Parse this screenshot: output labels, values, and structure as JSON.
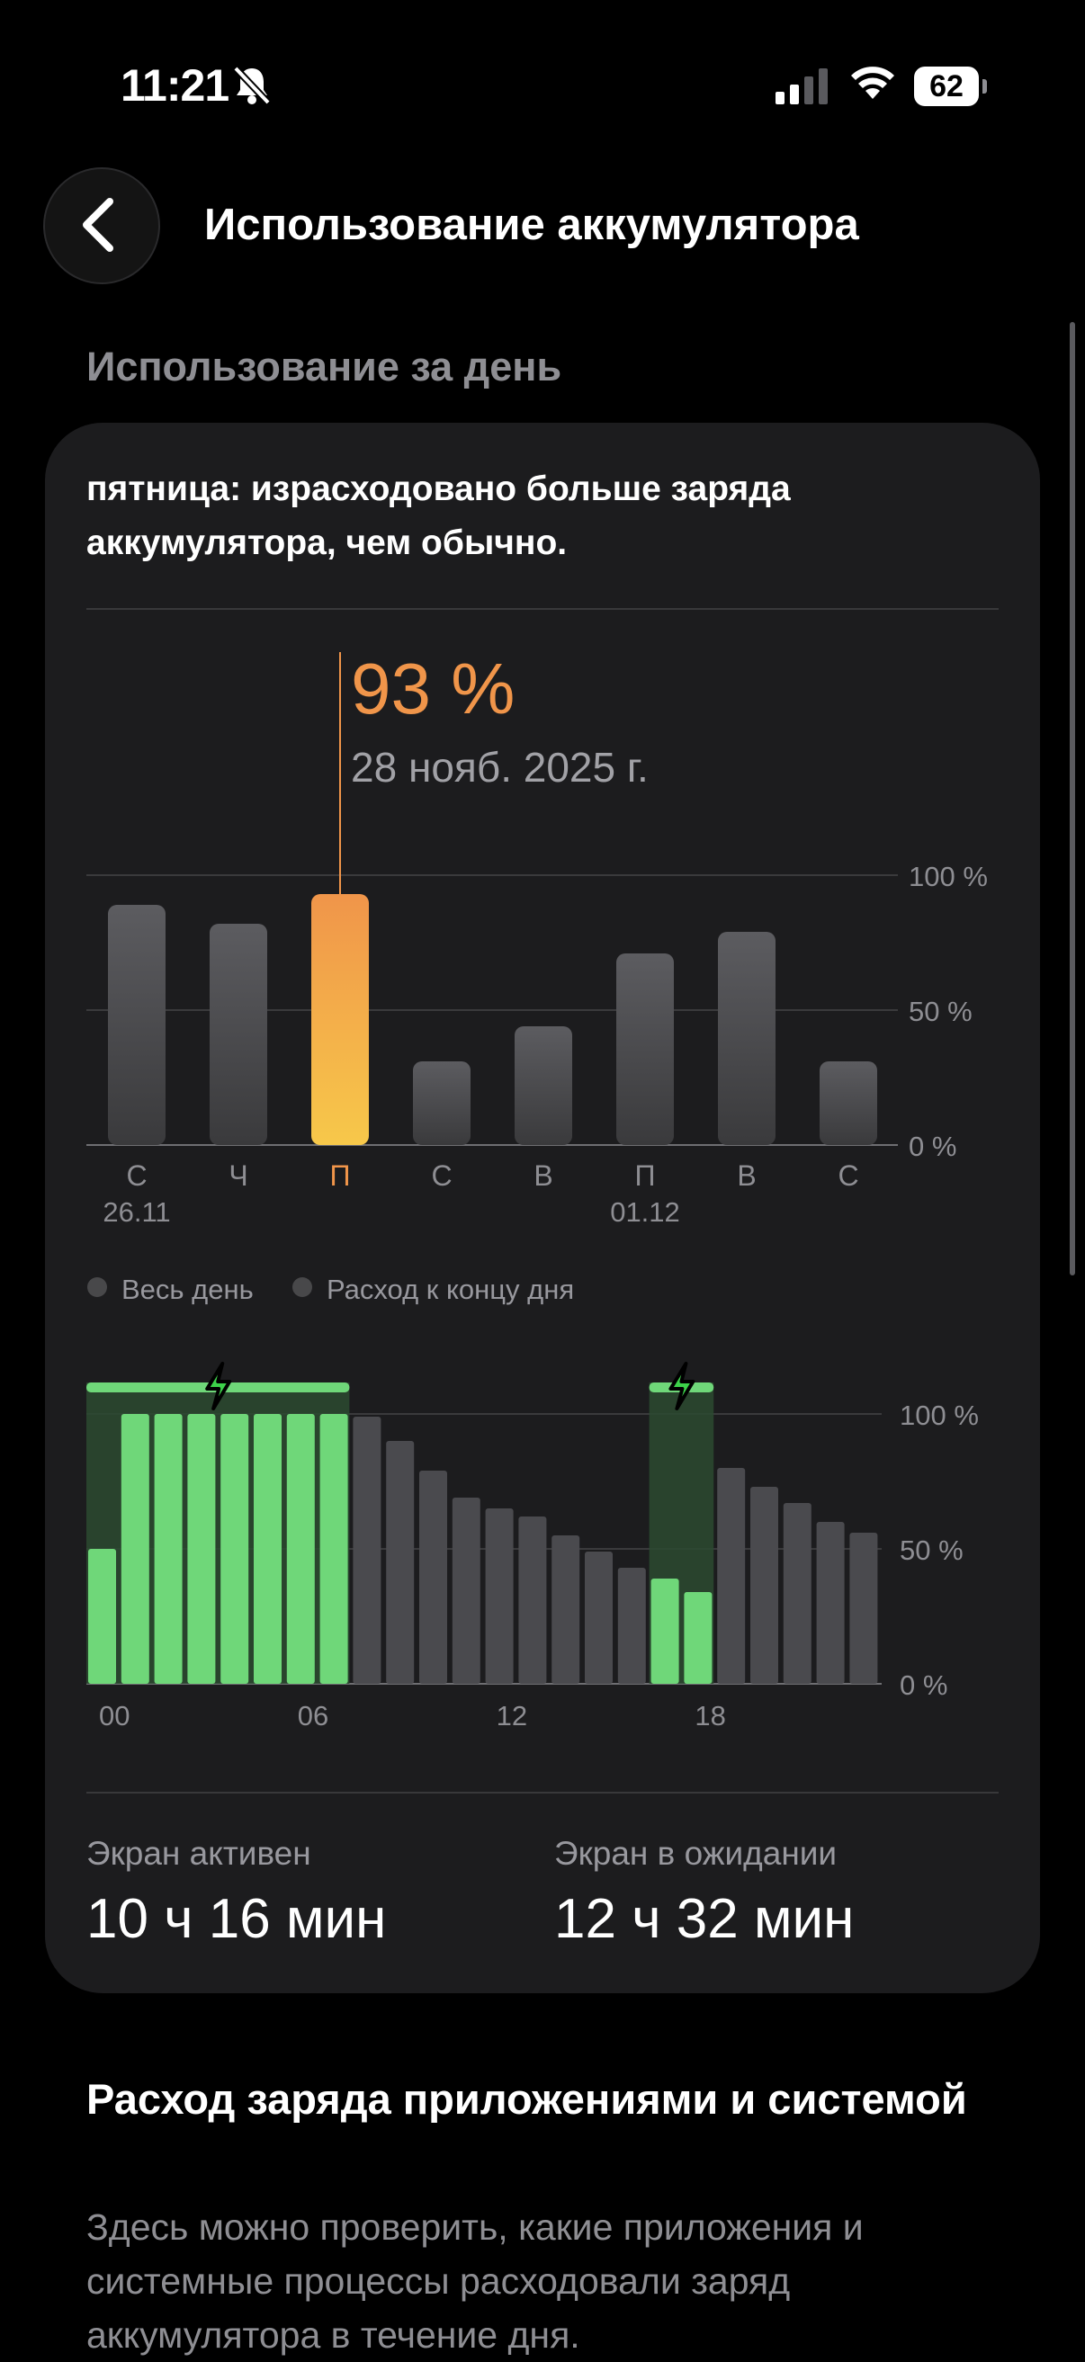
{
  "status_bar": {
    "time": "11:21",
    "battery": "62"
  },
  "nav": {
    "title": "Использование аккумулятора"
  },
  "section": {
    "title": "Использование за день"
  },
  "summary": {
    "text": "пятница: израсходовано больше заряда аккумулятора, чем обычно."
  },
  "selected": {
    "percent": "93 %",
    "date": "28 нояб. 2025 г."
  },
  "chart_data": [
    {
      "type": "bar",
      "categories": [
        "С",
        "Ч",
        "П",
        "С",
        "В",
        "П",
        "В",
        "С"
      ],
      "sublabels": [
        "26.11",
        "",
        "",
        "",
        "",
        "01.12",
        "",
        ""
      ],
      "values": [
        89,
        82,
        93,
        31,
        44,
        71,
        79,
        31
      ],
      "selected_index": 2,
      "y_ticks": [
        "0 %",
        "50 %",
        "100 %"
      ],
      "ylim": [
        0,
        100
      ],
      "grid": true
    },
    {
      "type": "bar",
      "legend": [
        "Весь день",
        "Расход к концу дня"
      ],
      "x_ticks": [
        "00",
        "06",
        "12",
        "18"
      ],
      "y_ticks": [
        "0 %",
        "50 %",
        "100 %"
      ],
      "ylim": [
        0,
        100
      ],
      "charging_hours": [
        0,
        1,
        2,
        3,
        4,
        5,
        6,
        7,
        17,
        18
      ],
      "levels": [
        50,
        100,
        100,
        100,
        100,
        100,
        100,
        100,
        99,
        90,
        79,
        69,
        65,
        62,
        55,
        49,
        43,
        39,
        34,
        80,
        73,
        67,
        60,
        56
      ],
      "grid": true
    }
  ],
  "stats": {
    "screen_on": {
      "label": "Экран активен",
      "value": "10 ч 16 мин"
    },
    "screen_idle": {
      "label": "Экран в ожидании",
      "value": "12 ч 32 мин"
    }
  },
  "apps": {
    "title": "Расход заряда приложениями и системой",
    "description": "Здесь можно проверить, какие приложения и системные процессы расходовали заряд аккумулятора в течение дня."
  },
  "colors": {
    "accent": "#f0954a",
    "charge": "#6fd779",
    "bar": "#4a4a4e"
  }
}
